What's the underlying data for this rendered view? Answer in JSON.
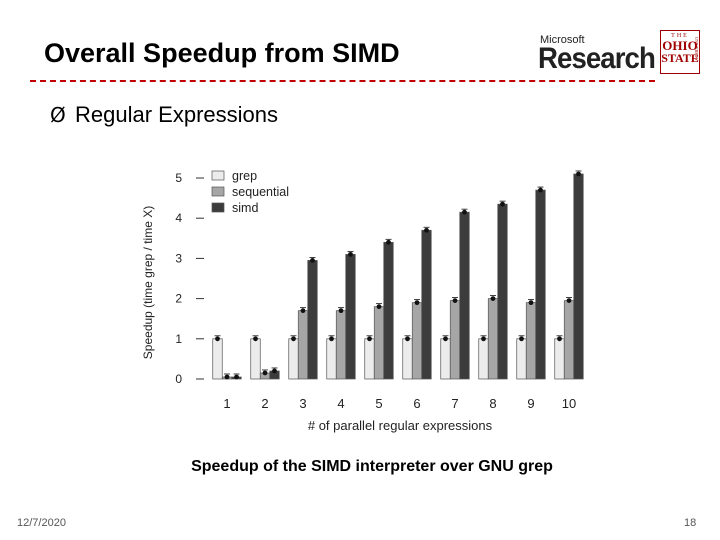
{
  "slide": {
    "title": "Overall Speedup from SIMD",
    "bullet_marker": "Ø",
    "bullet": "Regular Expressions",
    "caption": "Speedup of the SIMD interpreter over GNU grep",
    "date": "12/7/2020",
    "page_number": "18"
  },
  "logos": {
    "microsoft_small": "Microsoft",
    "microsoft_big": "Research",
    "osu_the": "THE",
    "osu_ohio": "OHIO",
    "osu_state": "STATE",
    "osu_university": "UNIVERSITY"
  },
  "colors": {
    "accent": "#c00000",
    "grep": "#ececec",
    "sequential": "#a6a6a6",
    "simd": "#3c3c3c"
  },
  "chart_data": {
    "type": "bar",
    "title": "",
    "xlabel": "# of parallel regular expressions",
    "ylabel": "Speedup (time grep / time X)",
    "ylim": [
      0,
      5
    ],
    "yticks": [
      "0",
      "1",
      "2",
      "3",
      "4",
      "5"
    ],
    "categories": [
      "1",
      "2",
      "3",
      "4",
      "5",
      "6",
      "7",
      "8",
      "9",
      "10"
    ],
    "legend_position": "top-left",
    "series": [
      {
        "name": "grep",
        "color": "#ececec",
        "values": [
          1.0,
          1.0,
          1.0,
          1.0,
          1.0,
          1.0,
          1.0,
          1.0,
          1.0,
          1.0
        ]
      },
      {
        "name": "sequential",
        "color": "#a6a6a6",
        "values": [
          0.05,
          0.15,
          1.7,
          1.7,
          1.8,
          1.9,
          1.95,
          2.0,
          1.9,
          1.95
        ]
      },
      {
        "name": "simd",
        "color": "#3c3c3c",
        "values": [
          0.05,
          0.2,
          2.95,
          3.1,
          3.4,
          3.7,
          4.15,
          4.35,
          4.7,
          5.1
        ]
      }
    ]
  }
}
